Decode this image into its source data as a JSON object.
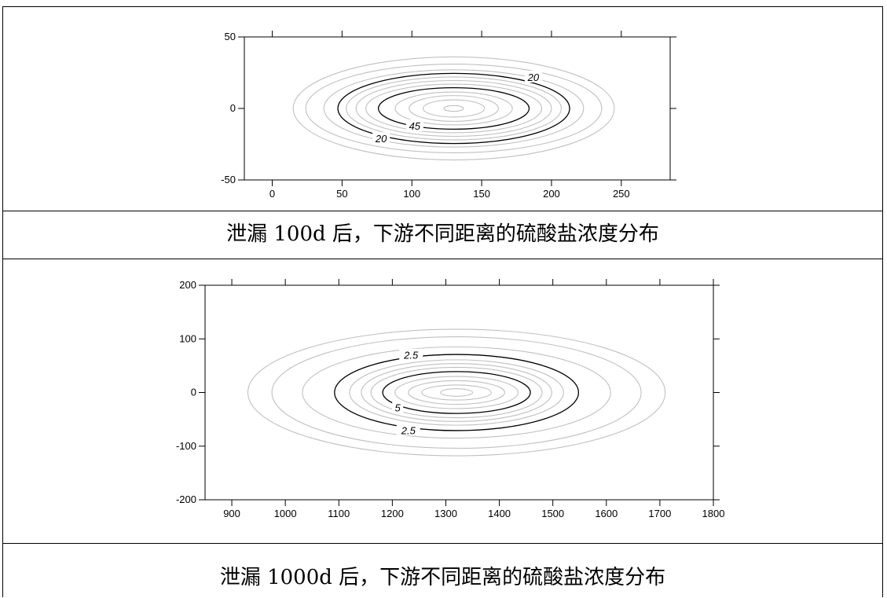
{
  "captions": {
    "fig1": "泄漏 100d 后，下游不同距离的硫酸盐浓度分布",
    "fig2": "泄漏 1000d 后，下游不同距离的硫酸盐浓度分布"
  },
  "chart_data": [
    {
      "type": "contour",
      "title": "",
      "xlabel": "",
      "ylabel": "",
      "xlim": [
        -20,
        285
      ],
      "ylim": [
        -50,
        50
      ],
      "xticks": [
        "0",
        "50",
        "100",
        "150",
        "200",
        "250"
      ],
      "xtick_values": [
        0,
        50,
        100,
        150,
        200,
        250
      ],
      "yticks": [
        "50",
        "0",
        "-50"
      ],
      "ytick_values": [
        50,
        0,
        -50
      ],
      "grid": false,
      "plume_center": [
        130,
        0
      ],
      "contours": [
        {
          "rx": 7,
          "ry": 2,
          "color": "#c0c0c0"
        },
        {
          "rx": 22,
          "ry": 6,
          "color": "#c0c0c0"
        },
        {
          "rx": 32,
          "ry": 9,
          "color": "#c0c0c0"
        },
        {
          "rx": 42,
          "ry": 11.5,
          "color": "#c0c0c0"
        },
        {
          "rx": 54,
          "ry": 14.5,
          "color": "#000000",
          "label": "45"
        },
        {
          "rx": 63,
          "ry": 17,
          "color": "#c0c0c0"
        },
        {
          "rx": 70,
          "ry": 19.5,
          "color": "#c0c0c0"
        },
        {
          "rx": 77,
          "ry": 22,
          "color": "#c0c0c0"
        },
        {
          "rx": 83,
          "ry": 24.5,
          "color": "#000000",
          "label": "20"
        },
        {
          "rx": 93,
          "ry": 27,
          "color": "#c0c0c0"
        },
        {
          "rx": 106,
          "ry": 31,
          "color": "#c0c0c0"
        },
        {
          "rx": 115,
          "ry": 36,
          "color": "#c0c0c0"
        }
      ],
      "contour_labels": [
        {
          "text": "20",
          "x": 187,
          "y": 22
        },
        {
          "text": "45",
          "x": 102,
          "y": -12
        },
        {
          "text": "20",
          "x": 78,
          "y": -21
        }
      ]
    },
    {
      "type": "contour",
      "title": "",
      "xlabel": "",
      "ylabel": "",
      "xlim": [
        850,
        1800
      ],
      "ylim": [
        -200,
        200
      ],
      "xticks": [
        "900",
        "1000",
        "1100",
        "1200",
        "1300",
        "1400",
        "1500",
        "1600",
        "1700",
        "1800"
      ],
      "xtick_values": [
        900,
        1000,
        1100,
        1200,
        1300,
        1400,
        1500,
        1600,
        1700,
        1800
      ],
      "yticks": [
        "200",
        "100",
        "0",
        "-100",
        "-200"
      ],
      "ytick_values": [
        200,
        100,
        0,
        -100,
        -200
      ],
      "grid": false,
      "plume_center": [
        1320,
        0
      ],
      "contours": [
        {
          "rx": 30,
          "ry": 7,
          "color": "#c0c0c0"
        },
        {
          "rx": 65,
          "ry": 14,
          "color": "#c0c0c0"
        },
        {
          "rx": 90,
          "ry": 22,
          "color": "#c0c0c0"
        },
        {
          "rx": 115,
          "ry": 30,
          "color": "#c0c0c0"
        },
        {
          "rx": 138,
          "ry": 39,
          "color": "#000000",
          "label": "5"
        },
        {
          "rx": 160,
          "ry": 47,
          "color": "#c0c0c0"
        },
        {
          "rx": 178,
          "ry": 54,
          "color": "#c0c0c0"
        },
        {
          "rx": 200,
          "ry": 61,
          "color": "#c0c0c0"
        },
        {
          "rx": 228,
          "ry": 71,
          "color": "#000000",
          "label": "2.5"
        },
        {
          "rx": 288,
          "ry": 85,
          "color": "#c0c0c0"
        },
        {
          "rx": 345,
          "ry": 104,
          "color": "#c0c0c0"
        },
        {
          "rx": 390,
          "ry": 118,
          "color": "#c0c0c0"
        }
      ],
      "contour_labels": [
        {
          "text": "2.5",
          "x": 1235,
          "y": 70
        },
        {
          "text": "5",
          "x": 1210,
          "y": -28
        },
        {
          "text": "2.5",
          "x": 1230,
          "y": -70
        }
      ]
    }
  ]
}
